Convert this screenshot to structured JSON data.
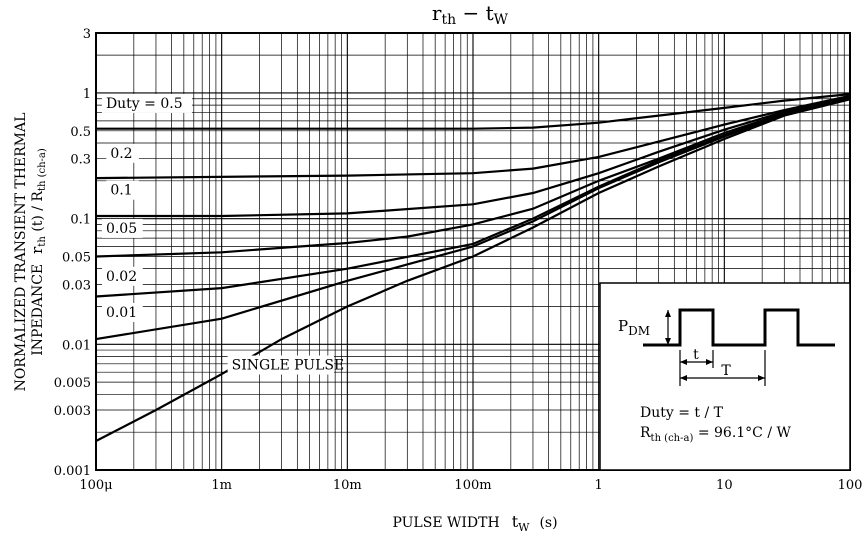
{
  "chart_data": {
    "type": "line",
    "title": "rth − tw",
    "title_parts": {
      "main1": "r",
      "sub1": "th",
      "dash": " − ",
      "main2": "t",
      "sub2": "W"
    },
    "xlabel": "PULSE WIDTH",
    "xlabel_symbol": {
      "main": "t",
      "sub": "W",
      "unit": "(s)"
    },
    "ylabel_line1": "NORMALIZED TRANSIENT THERMAL",
    "ylabel_line2_prefix": "INPEDANCE",
    "ylabel_symbol": {
      "m1": "r",
      "s1": "th",
      "m2": " (t) / R",
      "s2": "th (ch-a)"
    },
    "x_scale": "log",
    "y_scale": "log",
    "xlim": [
      0.0001,
      100
    ],
    "ylim": [
      0.001,
      3
    ],
    "grid": true,
    "x_ticks": [
      {
        "value": 0.0001,
        "label": "100μ"
      },
      {
        "value": 0.001,
        "label": "1m"
      },
      {
        "value": 0.01,
        "label": "10m"
      },
      {
        "value": 0.1,
        "label": "100m"
      },
      {
        "value": 1,
        "label": "1"
      },
      {
        "value": 10,
        "label": "10"
      },
      {
        "value": 100,
        "label": "100"
      }
    ],
    "y_ticks": [
      {
        "value": 0.001,
        "label": "0.001"
      },
      {
        "value": 0.003,
        "label": "0.003"
      },
      {
        "value": 0.005,
        "label": "0.005"
      },
      {
        "value": 0.01,
        "label": "0.01"
      },
      {
        "value": 0.03,
        "label": "0.03"
      },
      {
        "value": 0.05,
        "label": "0.05"
      },
      {
        "value": 0.1,
        "label": "0.1"
      },
      {
        "value": 0.3,
        "label": "0.3"
      },
      {
        "value": 0.5,
        "label": "0.5"
      },
      {
        "value": 1,
        "label": "1"
      },
      {
        "value": 3,
        "label": "3"
      }
    ],
    "series": [
      {
        "name": "Duty = 0.5",
        "label_x": 0.00012,
        "label_y": 0.76,
        "x": [
          0.0001,
          0.01,
          0.1,
          0.3,
          1,
          3,
          10,
          30,
          100
        ],
        "y": [
          0.52,
          0.52,
          0.52,
          0.53,
          0.58,
          0.66,
          0.76,
          0.87,
          0.98
        ]
      },
      {
        "name": "0.2",
        "label_x": 0.00013,
        "label_y": 0.305,
        "x": [
          0.0001,
          0.01,
          0.1,
          0.3,
          1,
          3,
          10,
          30,
          100
        ],
        "y": [
          0.21,
          0.22,
          0.23,
          0.25,
          0.31,
          0.41,
          0.56,
          0.73,
          0.95
        ]
      },
      {
        "name": "0.1",
        "label_x": 0.00013,
        "label_y": 0.155,
        "x": [
          0.0001,
          0.001,
          0.01,
          0.1,
          0.3,
          1,
          3,
          10,
          30,
          100
        ],
        "y": [
          0.105,
          0.105,
          0.11,
          0.13,
          0.16,
          0.23,
          0.34,
          0.51,
          0.71,
          0.93
        ]
      },
      {
        "name": "0.05",
        "label_x": 0.00012,
        "label_y": 0.077,
        "x": [
          0.0001,
          0.001,
          0.01,
          0.03,
          0.1,
          0.3,
          1,
          3,
          10,
          30,
          100
        ],
        "y": [
          0.05,
          0.054,
          0.064,
          0.072,
          0.09,
          0.12,
          0.2,
          0.3,
          0.48,
          0.69,
          0.92
        ]
      },
      {
        "name": "0.02",
        "label_x": 0.00012,
        "label_y": 0.032,
        "x": [
          0.0001,
          0.001,
          0.01,
          0.1,
          0.3,
          1,
          3,
          10,
          30,
          100
        ],
        "y": [
          0.024,
          0.028,
          0.04,
          0.063,
          0.1,
          0.18,
          0.29,
          0.46,
          0.68,
          0.91
        ]
      },
      {
        "name": "0.01",
        "label_x": 0.00012,
        "label_y": 0.0165,
        "x": [
          0.0001,
          0.001,
          0.01,
          0.1,
          0.3,
          1,
          3,
          10,
          30,
          100
        ],
        "y": [
          0.011,
          0.016,
          0.032,
          0.06,
          0.095,
          0.175,
          0.28,
          0.45,
          0.67,
          0.9
        ]
      },
      {
        "name": "SINGLE PULSE",
        "label_x": 0.0012,
        "label_y": 0.0063,
        "x": [
          0.0001,
          0.0003,
          0.001,
          0.003,
          0.01,
          0.03,
          0.1,
          0.3,
          1,
          3,
          10,
          30,
          100
        ],
        "y": [
          0.0017,
          0.003,
          0.0058,
          0.011,
          0.02,
          0.032,
          0.05,
          0.085,
          0.16,
          0.26,
          0.43,
          0.66,
          0.89
        ]
      }
    ],
    "inset": {
      "pdm": {
        "main": "P",
        "sub": "DM"
      },
      "t_label": "t",
      "T_label": "T",
      "duty_text": "Duty = t / T",
      "rth": {
        "main": "R",
        "sub": "th (ch-a)",
        "value": " = 96.1°C / W"
      }
    }
  }
}
